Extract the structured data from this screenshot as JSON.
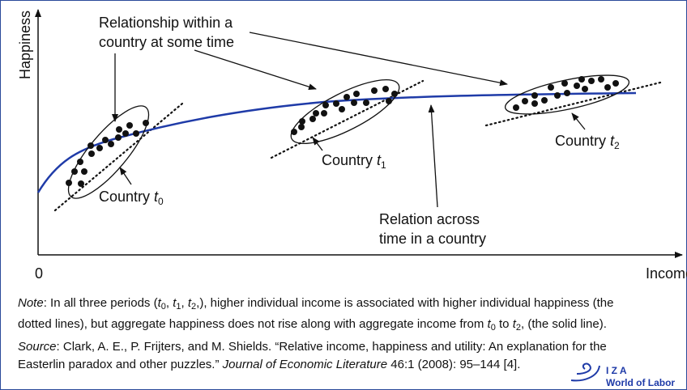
{
  "diagram": {
    "y_axis_label": "Happiness",
    "x_axis_label": "Income",
    "origin_label": "0",
    "within_label": [
      "Relationship within a",
      "country at some time"
    ],
    "across_label": [
      "Relation across",
      "time in a country"
    ],
    "countries": [
      {
        "label": "Country ",
        "var": "t",
        "sub": "0"
      },
      {
        "label": "Country ",
        "var": "t",
        "sub": "1"
      },
      {
        "label": "Country ",
        "var": "t",
        "sub": "2"
      }
    ]
  },
  "note": {
    "line1": [
      "Note",
      ": In all three periods (",
      "t",
      "0",
      ", ",
      "t",
      "1",
      ", ",
      "t",
      "2",
      ",), higher individual income is associated with higher individual happiness (the"
    ],
    "line2": [
      "dotted lines), but aggregate happiness does not rise along with aggregate income from ",
      "t",
      "0",
      " to ",
      "t",
      "2",
      ", (the solid line)."
    ]
  },
  "source": {
    "line1": [
      "Source",
      ": Clark, A. E., P. Frijters, and M. Shields. “Relative income, happiness and utility: An explanation for the"
    ],
    "line2": [
      "Easterlin paradox and other puzzles.” ",
      "Journal of Economic Literature",
      " 46:1 (2008): 95–144 [4]."
    ]
  },
  "logo": {
    "name": "I Z A",
    "tagline": "World of Labor"
  }
}
